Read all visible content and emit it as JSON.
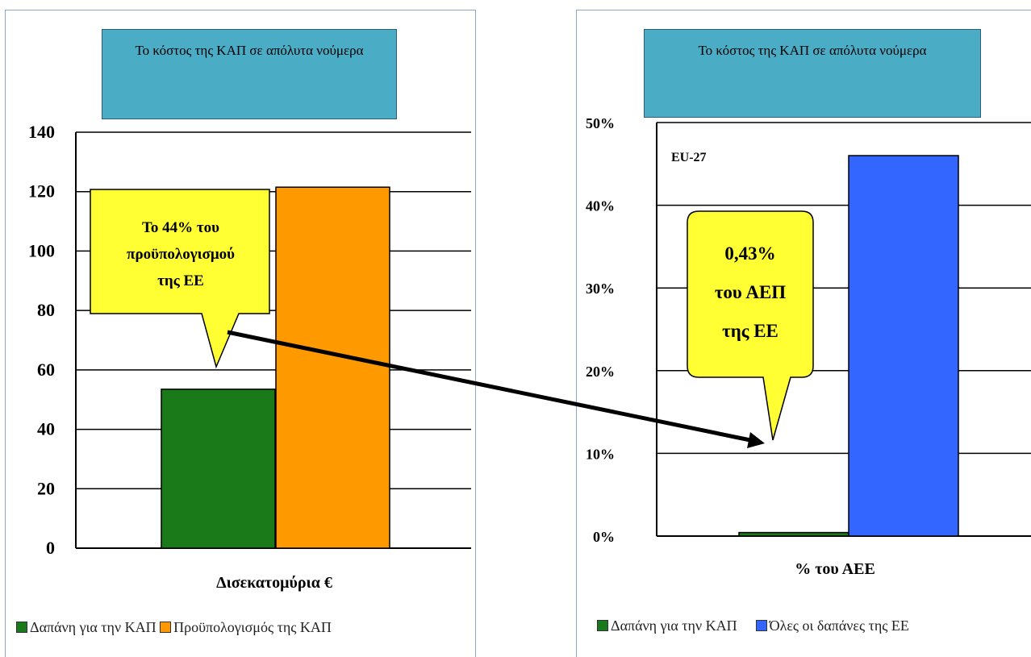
{
  "left": {
    "title": "Το κόστος της ΚΑΠ σε απόλυτα νούμερα",
    "callout": "Το 44% του προϋπολογισμού της ΕΕ",
    "legend": [
      {
        "label": "Δαπάνη για την ΚΑΠ",
        "color": "#1a7a1a"
      },
      {
        "label": "Προϋπολογισμός της ΚΑΠ",
        "color": "#ff9900"
      }
    ]
  },
  "right": {
    "title": "Το κόστος της ΚΑΠ σε απόλυτα νούμερα",
    "callout": "0,43% του ΑΕΠ της ΕΕ",
    "legend": [
      {
        "label": "Δαπάνη για την ΚΑΠ",
        "color": "#1a7a1a"
      },
      {
        "label": "Όλες οι δαπάνες της ΕΕ",
        "color": "#3366ff"
      }
    ]
  },
  "chart_data": [
    {
      "type": "bar",
      "title": "Το κόστος της ΚΑΠ σε απόλυτα νούμερα",
      "xlabel": "Δισεκατομύρια €",
      "ylabel": "",
      "categories": [
        "Δισεκατομύρια €"
      ],
      "series": [
        {
          "name": "Δαπάνη για την ΚΑΠ",
          "values": [
            53.5
          ]
        },
        {
          "name": "Προϋπολογισμός της ΚΑΠ",
          "values": [
            121.5
          ]
        }
      ],
      "ylim": [
        0,
        140
      ],
      "yticks": [
        "0",
        "20",
        "40",
        "60",
        "80",
        "100",
        "120",
        "140"
      ],
      "grid": true,
      "legend_position": "bottom",
      "annotations": [
        "Το 44% του προϋπολογισμού της ΕΕ"
      ]
    },
    {
      "type": "bar",
      "title": "Το κόστος της ΚΑΠ σε απόλυτα νούμερα",
      "xlabel": "% του ΑΕΕ",
      "ylabel": "",
      "categories": [
        "% του ΑΕΕ"
      ],
      "series": [
        {
          "name": "Δαπάνη για την ΚΑΠ",
          "values": [
            0.43
          ]
        },
        {
          "name": "Όλες οι δαπάνες της ΕΕ",
          "values": [
            46
          ]
        }
      ],
      "ylim": [
        0,
        50
      ],
      "yticks": [
        "0%",
        "10%",
        "20%",
        "30%",
        "40%",
        "50%"
      ],
      "grid": true,
      "legend_position": "bottom",
      "annotations": [
        "EU-27",
        "0,43% του ΑΕΠ της ΕΕ"
      ]
    }
  ]
}
